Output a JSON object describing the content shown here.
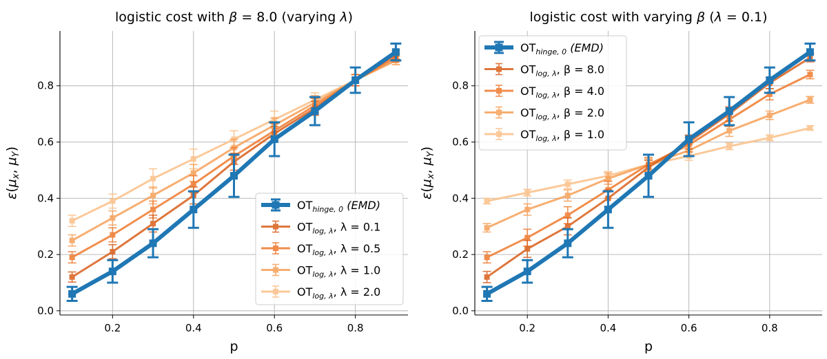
{
  "figure": {
    "background": "#ffffff"
  },
  "chart_data": [
    {
      "type": "line",
      "title_parts": {
        "prefix": "logistic cost with ",
        "var": "β",
        "mid": " = 8.0 (varying ",
        "var2": "λ",
        "suffix": ")"
      },
      "xlabel": "p",
      "ylabel_parts": {
        "eps": "ε",
        "open": "(",
        "mu1": "μ",
        "sub1": "x",
        "sep": ", ",
        "mu2": "μ",
        "sub2": "Y",
        "close": ")"
      },
      "xlim": [
        0.07,
        0.93
      ],
      "ylim": [
        -0.015,
        0.995
      ],
      "xticks": [
        0.2,
        0.4,
        0.6,
        0.8
      ],
      "xtick_labels": [
        "0.2",
        "0.4",
        "0.6",
        "0.8"
      ],
      "yticks": [
        0.0,
        0.2,
        0.4,
        0.6,
        0.8
      ],
      "ytick_labels": [
        "0.0",
        "0.2",
        "0.4",
        "0.6",
        "0.8"
      ],
      "grid": true,
      "legend_position": "lower-right",
      "x": [
        0.1,
        0.2,
        0.3,
        0.4,
        0.5,
        0.6,
        0.7,
        0.8,
        0.9
      ],
      "series": [
        {
          "name": "OT_hinge,0 (EMD)",
          "label_main": "OT",
          "label_sub": "hinge, 0",
          "label_rest": " (EMD)",
          "label_rest_italic": true,
          "color": "#1f77b4",
          "width": 6,
          "opacity": 1.0,
          "marker": 11,
          "values": [
            0.06,
            0.14,
            0.24,
            0.36,
            0.48,
            0.61,
            0.71,
            0.82,
            0.92
          ],
          "errors": [
            0.025,
            0.04,
            0.05,
            0.065,
            0.075,
            0.06,
            0.05,
            0.045,
            0.03
          ]
        },
        {
          "name": "OT_log,λ, λ = 0.1",
          "label_main": "OT",
          "label_sub": "log, λ",
          "label_rest": ", λ = 0.1",
          "label_rest_italic": false,
          "color": "#d95f1b",
          "width": 3,
          "opacity": 0.85,
          "marker": 8,
          "values": [
            0.12,
            0.21,
            0.31,
            0.41,
            0.53,
            0.63,
            0.72,
            0.82,
            0.91
          ],
          "errors": [
            0.018,
            0.025,
            0.03,
            0.03,
            0.03,
            0.025,
            0.025,
            0.02,
            0.015
          ]
        },
        {
          "name": "OT_log,λ, λ = 0.5",
          "label_main": "OT",
          "label_sub": "log, λ",
          "label_rest": ", λ = 0.5",
          "label_rest_italic": false,
          "color": "#ef7a2d",
          "width": 3,
          "opacity": 0.85,
          "marker": 8,
          "values": [
            0.19,
            0.27,
            0.36,
            0.45,
            0.55,
            0.64,
            0.73,
            0.82,
            0.9
          ],
          "errors": [
            0.02,
            0.025,
            0.03,
            0.03,
            0.03,
            0.025,
            0.025,
            0.02,
            0.015
          ]
        },
        {
          "name": "OT_log,λ, λ = 1.0",
          "label_main": "OT",
          "label_sub": "log, λ",
          "label_rest": ", λ = 1.0",
          "label_rest_italic": false,
          "color": "#f6a059",
          "width": 3,
          "opacity": 0.85,
          "marker": 8,
          "values": [
            0.25,
            0.33,
            0.41,
            0.49,
            0.58,
            0.66,
            0.74,
            0.82,
            0.89
          ],
          "errors": [
            0.02,
            0.025,
            0.03,
            0.03,
            0.03,
            0.025,
            0.025,
            0.02,
            0.015
          ]
        },
        {
          "name": "OT_log,λ, λ = 2.0",
          "label_main": "OT",
          "label_sub": "log, λ",
          "label_rest": ", λ = 2.0",
          "label_rest_italic": false,
          "color": "#fbc48f",
          "width": 3,
          "opacity": 0.9,
          "marker": 8,
          "values": [
            0.32,
            0.39,
            0.47,
            0.54,
            0.61,
            0.68,
            0.75,
            0.82,
            0.89
          ],
          "errors": [
            0.02,
            0.025,
            0.035,
            0.035,
            0.03,
            0.03,
            0.025,
            0.02,
            0.015
          ]
        }
      ]
    },
    {
      "type": "line",
      "title_parts": {
        "prefix": "logistic cost with varying ",
        "var": "β",
        "mid": " (",
        "var2": "λ",
        "suffix": " = 0.1)"
      },
      "xlabel": "p",
      "ylabel_parts": {
        "eps": "ε",
        "open": "(",
        "mu1": "μ",
        "sub1": "x",
        "sep": ", ",
        "mu2": "μ",
        "sub2": "Y",
        "close": ")"
      },
      "xlim": [
        0.07,
        0.93
      ],
      "ylim": [
        -0.015,
        0.995
      ],
      "xticks": [
        0.2,
        0.4,
        0.6,
        0.8
      ],
      "xtick_labels": [
        "0.2",
        "0.4",
        "0.6",
        "0.8"
      ],
      "yticks": [
        0.0,
        0.2,
        0.4,
        0.6,
        0.8
      ],
      "ytick_labels": [
        "0.0",
        "0.2",
        "0.4",
        "0.6",
        "0.8"
      ],
      "grid": true,
      "legend_position": "upper-left",
      "x": [
        0.1,
        0.2,
        0.3,
        0.4,
        0.5,
        0.6,
        0.7,
        0.8,
        0.9
      ],
      "series": [
        {
          "name": "OT_hinge,0 (EMD)",
          "label_main": "OT",
          "label_sub": "hinge, 0",
          "label_rest": " (EMD)",
          "label_rest_italic": true,
          "color": "#1f77b4",
          "width": 6,
          "opacity": 1.0,
          "marker": 11,
          "values": [
            0.06,
            0.14,
            0.24,
            0.36,
            0.48,
            0.61,
            0.71,
            0.82,
            0.92
          ],
          "errors": [
            0.025,
            0.04,
            0.05,
            0.065,
            0.075,
            0.06,
            0.05,
            0.045,
            0.03
          ]
        },
        {
          "name": "OT_log,λ, β = 8.0",
          "label_main": "OT",
          "label_sub": "log, λ",
          "label_rest": ", β = 8.0",
          "label_rest_italic": false,
          "color": "#d95f1b",
          "width": 3,
          "opacity": 0.85,
          "marker": 8,
          "values": [
            0.12,
            0.22,
            0.3,
            0.4,
            0.51,
            0.6,
            0.7,
            0.81,
            0.9
          ],
          "errors": [
            0.02,
            0.03,
            0.03,
            0.03,
            0.025,
            0.025,
            0.025,
            0.02,
            0.015
          ]
        },
        {
          "name": "OT_log,λ, β = 4.0",
          "label_main": "OT",
          "label_sub": "log, λ",
          "label_rest": ", β = 4.0",
          "label_rest_italic": false,
          "color": "#ef7a2d",
          "width": 3,
          "opacity": 0.85,
          "marker": 8,
          "values": [
            0.19,
            0.26,
            0.34,
            0.43,
            0.52,
            0.59,
            0.68,
            0.77,
            0.84
          ],
          "errors": [
            0.02,
            0.03,
            0.03,
            0.03,
            0.025,
            0.025,
            0.025,
            0.02,
            0.015
          ]
        },
        {
          "name": "OT_log,λ, β = 2.0",
          "label_main": "OT",
          "label_sub": "log, λ",
          "label_rest": ", β = 2.0",
          "label_rest_italic": false,
          "color": "#f6a059",
          "width": 3,
          "opacity": 0.85,
          "marker": 8,
          "values": [
            0.295,
            0.36,
            0.41,
            0.47,
            0.52,
            0.57,
            0.64,
            0.695,
            0.75
          ],
          "errors": [
            0.015,
            0.02,
            0.02,
            0.02,
            0.02,
            0.02,
            0.02,
            0.015,
            0.012
          ]
        },
        {
          "name": "OT_log,λ, β = 1.0",
          "label_main": "OT",
          "label_sub": "log, λ",
          "label_rest": ", β = 1.0",
          "label_rest_italic": false,
          "color": "#fbc48f",
          "width": 3,
          "opacity": 0.9,
          "marker": 8,
          "values": [
            0.39,
            0.42,
            0.45,
            0.48,
            0.52,
            0.55,
            0.585,
            0.615,
            0.65
          ],
          "errors": [
            0.01,
            0.012,
            0.015,
            0.015,
            0.015,
            0.015,
            0.012,
            0.01,
            0.008
          ]
        }
      ]
    }
  ]
}
